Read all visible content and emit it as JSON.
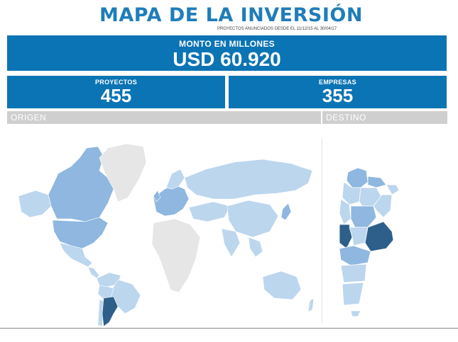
{
  "title": "MAPA DE LA INVERSIÓN",
  "subtitle": "PROYECTOS ANUNCIADOS DESDE EL 11/12/15 AL 30/04/17",
  "monto": {
    "label": "MONTO EN MILLONES",
    "value": "USD 60.920"
  },
  "proyectos": {
    "label": "PROYECTOS",
    "value": "455"
  },
  "empresas": {
    "label": "EMPRESAS",
    "value": "355"
  },
  "origen_label": "ORIGEN",
  "destino_label": "DESTINO",
  "colors": {
    "brand": "#0b74b4",
    "title": "#1f7dba",
    "map_dark": "#2d5f8a",
    "map_mid": "#8fb7df",
    "map_light": "#bcd6ee",
    "map_none": "#e6e6e6"
  }
}
